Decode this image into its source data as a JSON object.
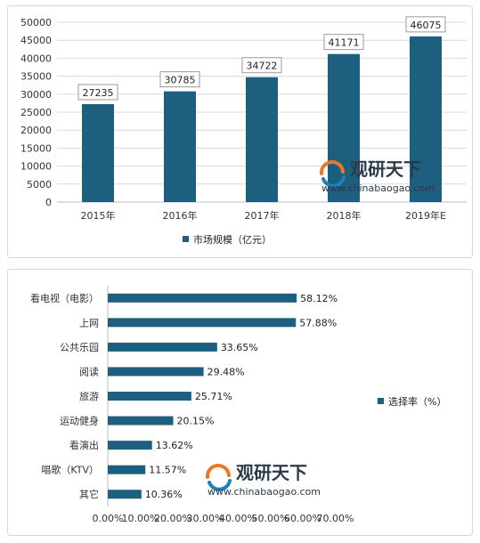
{
  "colors": {
    "bar": "#1d5f7e",
    "grid": "#d9d9d9",
    "axis": "#bfbfbf",
    "watermark_orange": "#e8792b",
    "watermark_blue": "#1f7fb8"
  },
  "watermark": {
    "name": "观研天下",
    "url": "www.chinabaogao.com"
  },
  "chart_data": [
    {
      "type": "bar",
      "categories": [
        "2015年",
        "2016年",
        "2017年",
        "2018年",
        "2019年E"
      ],
      "series": [
        {
          "name": "市场规模（亿元）",
          "values": [
            27235,
            30785,
            34722,
            41171,
            46075
          ]
        }
      ],
      "y_ticks": [
        "0",
        "5000",
        "10000",
        "15000",
        "20000",
        "25000",
        "30000",
        "35000",
        "40000",
        "45000",
        "50000"
      ],
      "ylim": [
        0,
        50000
      ],
      "grid": true,
      "legend_position": "bottom"
    },
    {
      "type": "bar",
      "orientation": "horizontal",
      "categories": [
        "看电视（电影）",
        "上网",
        "公共乐园",
        "阅读",
        "旅游",
        "运动健身",
        "看演出",
        "唱歌（KTV）",
        "其它"
      ],
      "series": [
        {
          "name": "选择率（%）",
          "values": [
            58.12,
            57.88,
            33.65,
            29.48,
            25.71,
            20.15,
            13.62,
            11.57,
            10.36
          ]
        }
      ],
      "value_labels": [
        "58.12%",
        "57.88%",
        "33.65%",
        "29.48%",
        "25.71%",
        "20.15%",
        "13.62%",
        "11.57%",
        "10.36%"
      ],
      "x_ticks": [
        "0.00%",
        "10.00%",
        "20.00%",
        "30.00%",
        "40.00%",
        "50.00%",
        "60.00%",
        "70.00%"
      ],
      "xlim": [
        0,
        70
      ],
      "grid": false,
      "legend_position": "right"
    }
  ]
}
